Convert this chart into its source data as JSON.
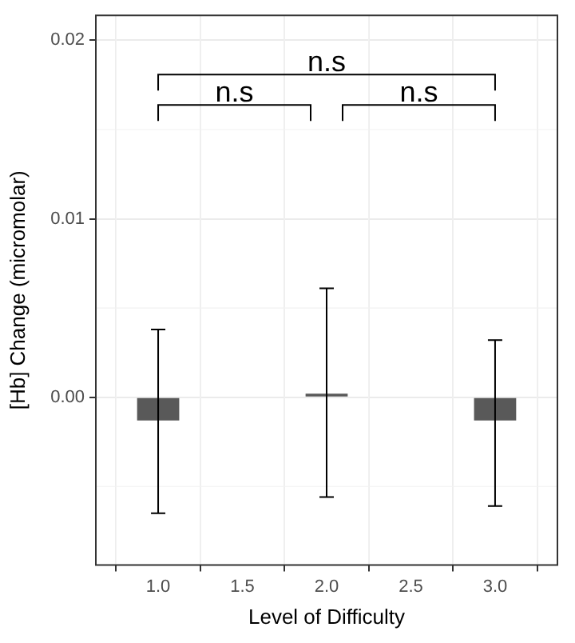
{
  "chart_data": {
    "type": "bar",
    "xlabel": "Level of Difficulty",
    "ylabel": "[Hb] Change (micromolar)",
    "x": [
      1,
      2,
      3
    ],
    "values": [
      -0.0013,
      0.0002,
      -0.0013
    ],
    "color": "#595959",
    "errors": [
      [
        -0.0065,
        0.0038
      ],
      [
        -0.0056,
        0.0061
      ],
      [
        -0.0061,
        0.0032
      ]
    ],
    "xlim": [
      0.63,
      3.37
    ],
    "xticks": [
      {
        "value": 1,
        "label": "1.0"
      },
      {
        "value": 1.5,
        "label": "1.5"
      },
      {
        "value": 2,
        "label": "2.0"
      },
      {
        "value": 2.5,
        "label": "2.5"
      },
      {
        "value": 3,
        "label": "3.0"
      }
    ],
    "ylim": [
      -0.0094,
      0.0214
    ],
    "yticks": [
      {
        "value": 0,
        "label": "0.00"
      },
      {
        "value": 0.01,
        "label": "0.01"
      },
      {
        "value": 0.02,
        "label": "0.02"
      }
    ],
    "grid": true,
    "annotations": [
      "n.s",
      "n.s",
      "n.s"
    ]
  }
}
